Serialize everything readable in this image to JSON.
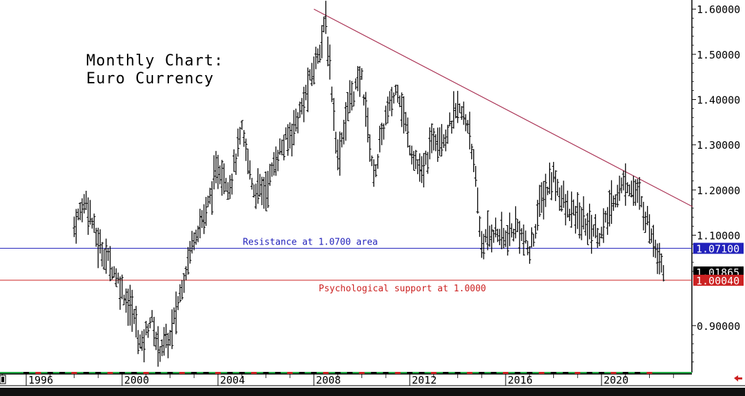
{
  "title_lines": [
    "Monthly Chart:",
    "Euro Currency"
  ],
  "annotations": {
    "resistance": "Resistance at 1.0700 area",
    "support": "Psychological support at 1.0000"
  },
  "price_labels": {
    "resistance_value": "1.07100",
    "last_value": "1.01865",
    "support_value": "1.00040"
  },
  "colors": {
    "bars": "#000000",
    "resistance": "#2222bb",
    "support": "#cc2222",
    "trendline": "#aa3355",
    "axis_bar_green": "#22aa44"
  },
  "chart_data": {
    "type": "ohlc",
    "y_tick_labels": [
      "1.60000",
      "1.50000",
      "1.40000",
      "1.30000",
      "1.20000",
      "1.10000",
      "0.90000"
    ],
    "y_ticks": [
      1.6,
      1.5,
      1.4,
      1.3,
      1.2,
      1.1,
      0.9
    ],
    "x_tick_labels": [
      "1996",
      "2000",
      "2004",
      "2008",
      "2012",
      "2016",
      "2020"
    ],
    "x_ticks": [
      1996,
      2000,
      2004,
      2008,
      2012,
      2016,
      2020
    ],
    "ylim": [
      0.8,
      1.63
    ],
    "xlim": [
      1995.0,
      2023.9
    ],
    "horizontal_lines": [
      {
        "name": "Resistance at 1.0700 area",
        "y": 1.071
      },
      {
        "name": "Psychological support at 1.0000",
        "y": 1.0004
      }
    ],
    "trendline": {
      "from": [
        2008.0,
        1.6
      ],
      "to": [
        2023.8,
        1.163
      ]
    },
    "anchor_points": [
      [
        1998.0,
        1.12
      ],
      [
        1998.5,
        1.18
      ],
      [
        1999.0,
        1.08
      ],
      [
        1999.5,
        1.04
      ],
      [
        2000.0,
        0.98
      ],
      [
        2000.5,
        0.92
      ],
      [
        2000.8,
        0.85
      ],
      [
        2001.2,
        0.92
      ],
      [
        2001.5,
        0.85
      ],
      [
        2002.0,
        0.87
      ],
      [
        2002.5,
        0.99
      ],
      [
        2003.0,
        1.1
      ],
      [
        2003.5,
        1.15
      ],
      [
        2004.0,
        1.25
      ],
      [
        2004.5,
        1.21
      ],
      [
        2005.0,
        1.33
      ],
      [
        2005.5,
        1.2
      ],
      [
        2006.0,
        1.2
      ],
      [
        2006.5,
        1.28
      ],
      [
        2007.0,
        1.32
      ],
      [
        2007.5,
        1.38
      ],
      [
        2008.0,
        1.47
      ],
      [
        2008.5,
        1.57
      ],
      [
        2009.0,
        1.27
      ],
      [
        2009.5,
        1.4
      ],
      [
        2010.0,
        1.45
      ],
      [
        2010.5,
        1.23
      ],
      [
        2011.0,
        1.36
      ],
      [
        2011.5,
        1.43
      ],
      [
        2012.0,
        1.3
      ],
      [
        2012.5,
        1.23
      ],
      [
        2013.0,
        1.32
      ],
      [
        2013.5,
        1.32
      ],
      [
        2014.0,
        1.38
      ],
      [
        2014.5,
        1.34
      ],
      [
        2015.0,
        1.08
      ],
      [
        2015.5,
        1.11
      ],
      [
        2016.0,
        1.09
      ],
      [
        2016.5,
        1.12
      ],
      [
        2017.0,
        1.06
      ],
      [
        2017.5,
        1.18
      ],
      [
        2018.0,
        1.23
      ],
      [
        2018.5,
        1.16
      ],
      [
        2019.0,
        1.14
      ],
      [
        2019.5,
        1.12
      ],
      [
        2020.0,
        1.1
      ],
      [
        2020.5,
        1.18
      ],
      [
        2021.0,
        1.22
      ],
      [
        2021.5,
        1.19
      ],
      [
        2022.0,
        1.12
      ],
      [
        2022.5,
        1.04
      ],
      [
        2022.65,
        1.0187
      ]
    ]
  }
}
